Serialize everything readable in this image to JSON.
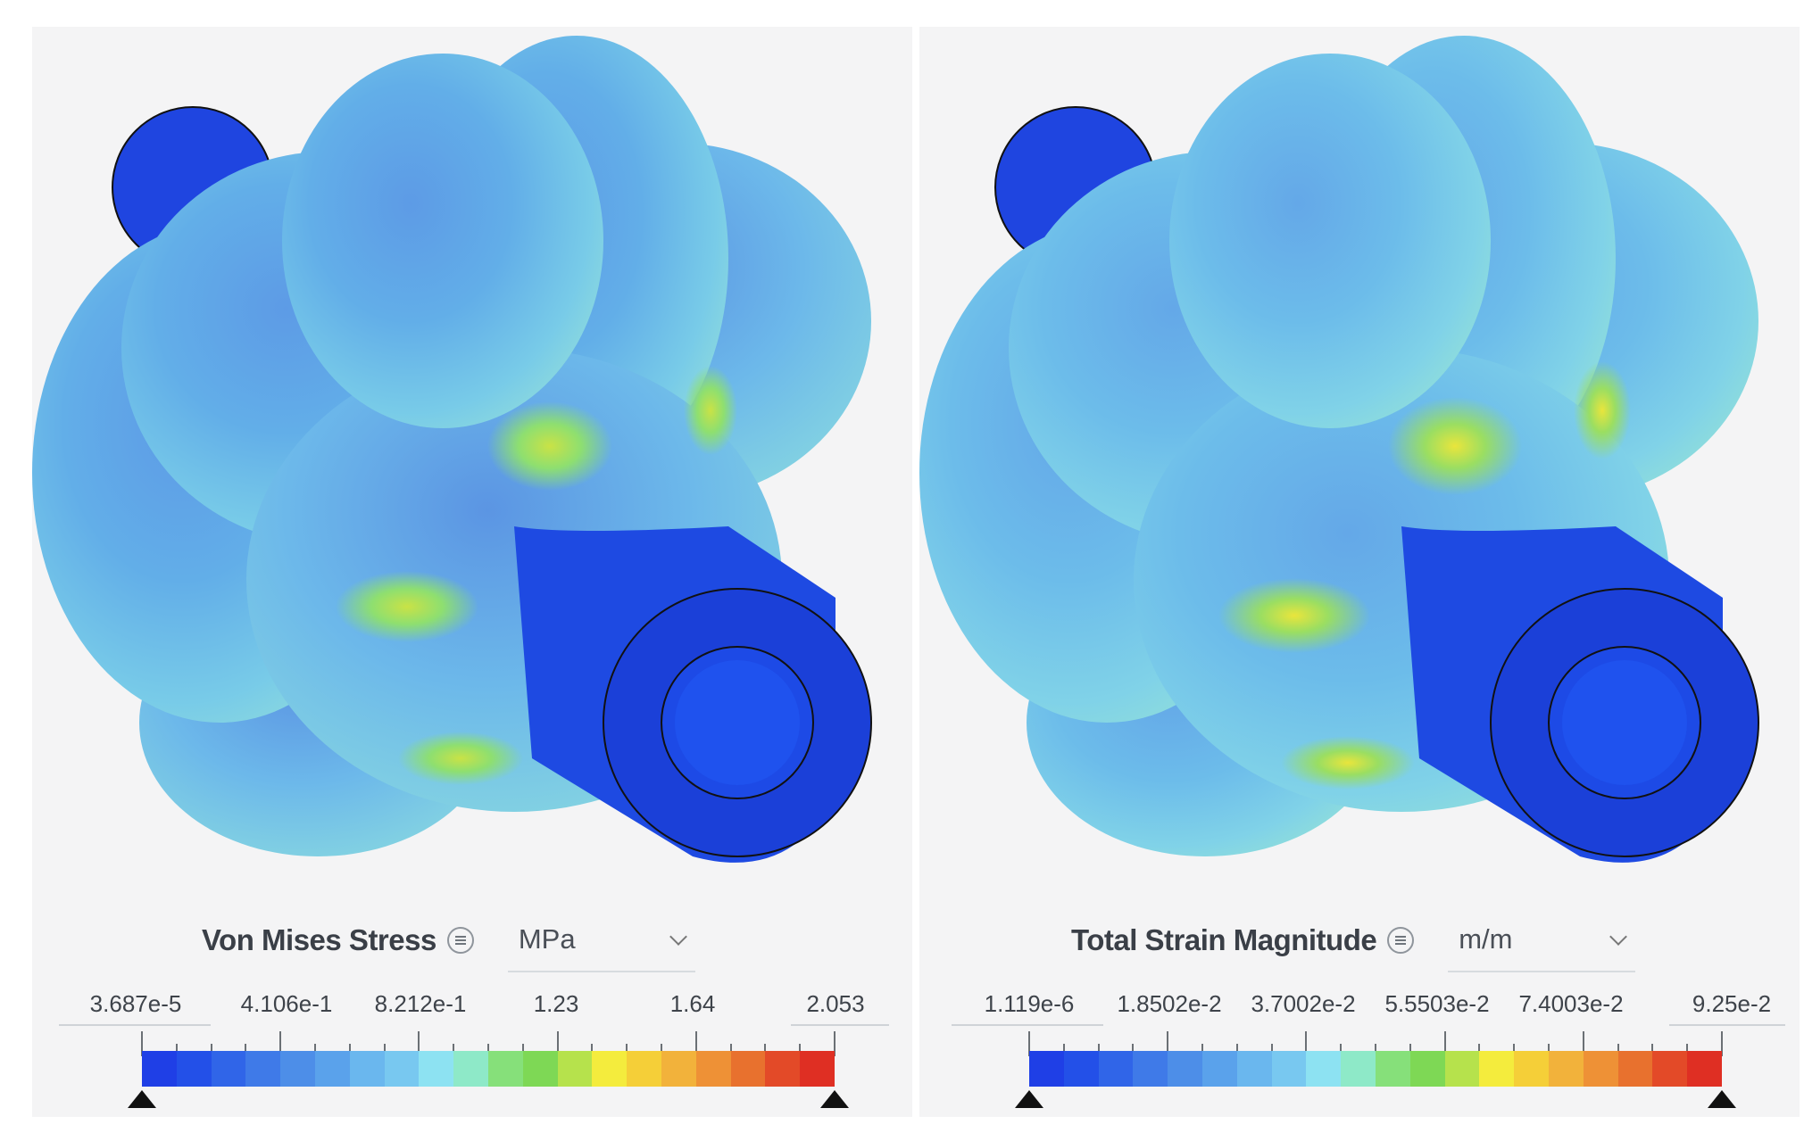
{
  "panels": [
    {
      "field": "Von Mises Stress",
      "unit": "MPa",
      "legend_labels": [
        "3.687e-5",
        "4.106e-1",
        "8.212e-1",
        "1.23",
        "1.64",
        "2.053"
      ]
    },
    {
      "field": "Total Strain Magnitude",
      "unit": "m/m",
      "legend_labels": [
        "1.119e-6",
        "1.8502e-2",
        "3.7002e-2",
        "5.5503e-2",
        "7.4003e-2",
        "9.25e-2"
      ]
    }
  ],
  "colormap": [
    "#1f3fe6",
    "#2350e8",
    "#3065e8",
    "#3f7ae8",
    "#4d8ee8",
    "#5aa2eb",
    "#6ab7ee",
    "#78c8f0",
    "#8de2f2",
    "#8ee9c8",
    "#86e07a",
    "#7ed855",
    "#b6e24c",
    "#f4ec3d",
    "#f5cf38",
    "#f2b23b",
    "#ee9136",
    "#e8712e",
    "#e34a28",
    "#df2f23"
  ],
  "icons": {
    "menu": "menu-lines-icon",
    "dropdown": "chevron-down-icon",
    "handle": "triangle-handle-icon"
  }
}
